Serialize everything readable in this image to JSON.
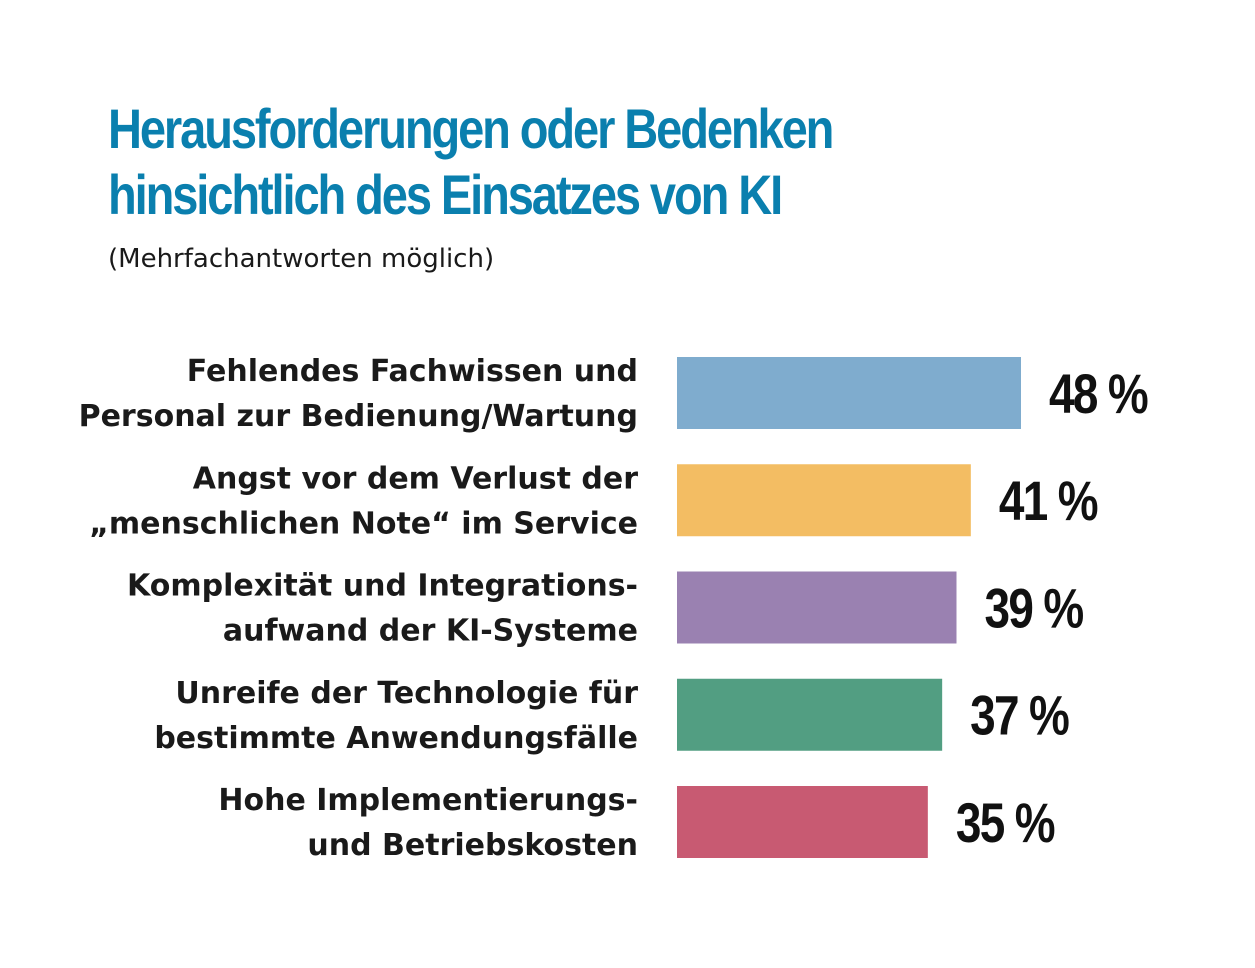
{
  "chart_data": {
    "type": "bar",
    "orientation": "horizontal",
    "title": "Herausforderungen oder Bedenken hinsichtlich des Einsatzes von KI",
    "subtitle": "(Mehrfachantworten möglich)",
    "categories": [
      "Fehlendes Fachwissen und Personal zur Bedienung/Wartung",
      "Angst vor dem Verlust der „menschlichen Note“ im Service",
      "Komplexität und Integrationsaufwand der KI-Systeme",
      "Unreife der Technologie für bestimmte Anwendungsfälle",
      "Hohe Implementierungs- und Betriebskosten"
    ],
    "category_lines": [
      [
        "Fehlendes Fachwissen und",
        "Personal zur Bedienung/Wartung"
      ],
      [
        "Angst vor dem Verlust der",
        "„menschlichen Note“ im Service"
      ],
      [
        "Komplexität und Integrations-",
        "aufwand der KI-Systeme"
      ],
      [
        "Unreife der Technologie für",
        "bestimmte Anwendungsfälle"
      ],
      [
        "Hohe Implementierungs-",
        "und Betriebskosten"
      ]
    ],
    "values": [
      48,
      41,
      39,
      37,
      35
    ],
    "value_labels": [
      "48 %",
      "41 %",
      "39 %",
      "37 %",
      "35 %"
    ],
    "unit": "%",
    "colors": [
      "#7facce",
      "#f3bd63",
      "#9a81b1",
      "#529e82",
      "#c85a72"
    ],
    "grid": false,
    "legend": "none"
  }
}
